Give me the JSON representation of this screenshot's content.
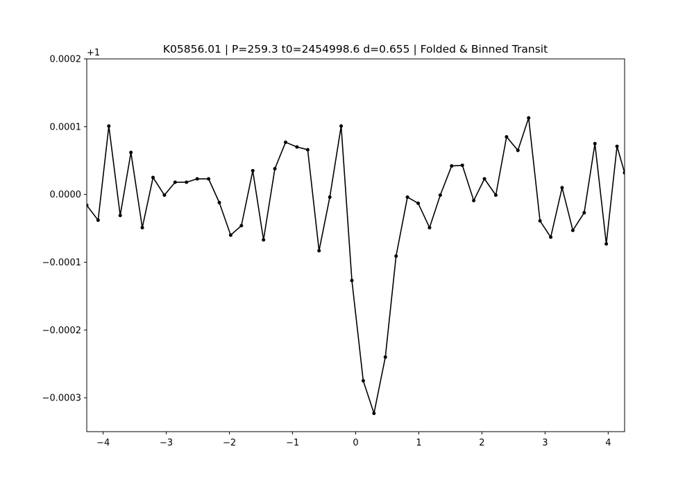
{
  "chart_data": {
    "type": "line",
    "title": "K05856.01 | P=259.3  t0=2454998.6  d=0.655 | Folded & Binned Transit",
    "xlabel": "",
    "ylabel": "",
    "y_offset_label": "+1",
    "xlim": [
      -4.26,
      4.26
    ],
    "ylim": [
      -0.00035,
      0.0002
    ],
    "x_ticks": [
      -4,
      -3,
      -2,
      -1,
      0,
      1,
      2,
      3,
      4
    ],
    "x_tick_labels": [
      "−4",
      "−3",
      "−2",
      "−1",
      "0",
      "1",
      "2",
      "3",
      "4"
    ],
    "y_ticks": [
      0.0002,
      0.0001,
      0.0,
      -0.0001,
      -0.0002,
      -0.0003
    ],
    "y_tick_labels": [
      "0.0002",
      "0.0001",
      "0.0000",
      "−0.0001",
      "−0.0002",
      "−0.0003"
    ],
    "grid": false,
    "line_color": "#000000",
    "marker": "dot",
    "series": [
      {
        "x": [
          -4.26,
          -4.08,
          -3.91,
          -3.73,
          -3.56,
          -3.38,
          -3.21,
          -3.03,
          -2.86,
          -2.68,
          -2.51,
          -2.33,
          -2.16,
          -1.98,
          -1.81,
          -1.63,
          -1.46,
          -1.28,
          -1.11,
          -0.93,
          -0.76,
          -0.58,
          -0.41,
          -0.23,
          -0.06,
          0.12,
          0.29,
          0.47,
          0.64,
          0.82,
          0.99,
          1.17,
          1.34,
          1.52,
          1.69,
          1.87,
          2.04,
          2.22,
          2.39,
          2.57,
          2.74,
          2.92,
          3.09,
          3.27,
          3.44,
          3.62,
          3.79,
          3.97,
          4.14,
          4.26
        ],
        "y": [
          -1.6e-05,
          -3.8e-05,
          0.000101,
          -3.1e-05,
          6.2e-05,
          -4.9e-05,
          2.5e-05,
          -1e-06,
          1.8e-05,
          1.8e-05,
          2.3e-05,
          2.3e-05,
          -1.2e-05,
          -6e-05,
          -4.6e-05,
          3.5e-05,
          -6.7e-05,
          3.8e-05,
          7.7e-05,
          7e-05,
          6.6e-05,
          -8.3e-05,
          -4e-06,
          0.000101,
          -0.000127,
          -0.000275,
          -0.000323,
          -0.00024,
          -9.1e-05,
          -4e-06,
          -1.3e-05,
          -4.9e-05,
          -1e-06,
          4.2e-05,
          4.3e-05,
          -9e-06,
          2.3e-05,
          -1e-06,
          8.5e-05,
          6.5e-05,
          0.000113,
          -3.9e-05,
          -6.3e-05,
          1e-05,
          -5.3e-05,
          -2.7e-05,
          7.5e-05,
          -7.3e-05,
          7.1e-05,
          3.2e-05
        ]
      }
    ]
  }
}
